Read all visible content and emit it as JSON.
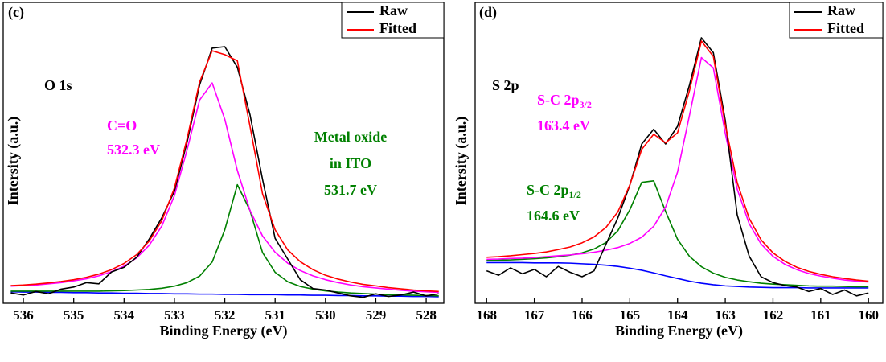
{
  "chart_data": [
    {
      "type": "line",
      "panel_label": "(c)",
      "x_label": "Binding Energy (eV)",
      "y_label": "Intersity (a.u.)",
      "x": [
        536.25,
        536.0,
        535.75,
        535.5,
        535.25,
        535.0,
        534.75,
        534.5,
        534.25,
        534.0,
        533.75,
        533.5,
        533.25,
        533.0,
        532.75,
        532.5,
        532.25,
        532.0,
        531.75,
        531.5,
        531.25,
        531.0,
        530.75,
        530.5,
        530.25,
        530.0,
        529.75,
        529.5,
        529.25,
        529.0,
        528.75,
        528.5,
        528.25,
        528.0,
        527.75
      ],
      "xlim": [
        536.4,
        527.65
      ],
      "xticks": [
        536,
        535,
        534,
        533,
        532,
        531,
        530,
        529,
        528
      ],
      "ylim": [
        -2,
        100
      ],
      "legend": "upper right",
      "series": [
        {
          "name": "Raw",
          "color": "#000000",
          "values": [
            1.5,
            0.8,
            2.0,
            1.2,
            2.8,
            3.5,
            5.0,
            4.6,
            8.6,
            10.2,
            13.6,
            19.8,
            27.0,
            36.0,
            52.5,
            72.0,
            84.5,
            85.0,
            78.0,
            62.0,
            40.0,
            20.0,
            13.0,
            6.0,
            3.0,
            2.5,
            1.5,
            0.5,
            0.0,
            1.2,
            0.3,
            0.8,
            1.8,
            0.5,
            1.2
          ]
        },
        {
          "name": "Fitted",
          "color": "#ff0000",
          "values": [
            4.0,
            4.2,
            4.5,
            4.9,
            5.4,
            6.0,
            6.8,
            7.9,
            9.4,
            11.5,
            14.5,
            19.1,
            26.0,
            37.1,
            53.7,
            73.0,
            83.6,
            82.3,
            80.2,
            58.1,
            35.1,
            22.9,
            16.1,
            12.1,
            9.4,
            7.5,
            6.2,
            5.2,
            4.4,
            3.9,
            3.3,
            2.9,
            2.5,
            2.2,
            2.0
          ]
        },
        {
          "color": "#ff00ff",
          "values": [
            3.8,
            4.0,
            4.2,
            4.6,
            5.0,
            5.6,
            6.3,
            7.3,
            8.7,
            10.6,
            13.4,
            17.7,
            24.2,
            34.5,
            49.9,
            66.9,
            72.7,
            60.4,
            43.0,
            29.5,
            20.8,
            15.3,
            11.6,
            9.1,
            7.3,
            6.0,
            5.0,
            4.2,
            3.6,
            3.2,
            2.8,
            2.4,
            2.1,
            1.9,
            1.7
          ]
        },
        {
          "color": "#008000",
          "values": [
            2.1,
            2.1,
            2.1,
            2.1,
            2.1,
            2.1,
            2.1,
            2.1,
            2.2,
            2.3,
            2.5,
            2.7,
            3.1,
            3.8,
            5.0,
            7.2,
            12.0,
            22.9,
            38.2,
            29.5,
            15.2,
            8.5,
            5.3,
            3.7,
            2.8,
            2.2,
            1.8,
            1.5,
            1.3,
            1.1,
            0.9,
            0.8,
            0.7,
            0.6,
            0.5
          ]
        },
        {
          "color": "#0000ff",
          "values": [
            1.9,
            1.8,
            1.8,
            1.7,
            1.7,
            1.6,
            1.6,
            1.5,
            1.5,
            1.4,
            1.4,
            1.3,
            1.3,
            1.2,
            1.2,
            1.1,
            1.1,
            1.0,
            1.0,
            0.9,
            0.9,
            0.9,
            0.8,
            0.8,
            0.7,
            0.7,
            0.6,
            0.6,
            0.5,
            0.5,
            0.4,
            0.4,
            0.3,
            0.3,
            0.2
          ]
        }
      ],
      "annotations": [
        {
          "text": "O 1s",
          "color": "#000000"
        },
        {
          "text": "C=O",
          "color": "#ff00ff"
        },
        {
          "text": "532.3 eV",
          "color": "#ff00ff"
        },
        {
          "text": "Metal oxide",
          "color": "#008000"
        },
        {
          "text": "in ITO",
          "color": "#008000"
        },
        {
          "text": "531.7 eV",
          "color": "#008000"
        }
      ]
    },
    {
      "type": "line",
      "panel_label": "(d)",
      "x_label": "Binding Energy (eV)",
      "y_label": "Intersity (a.u.)",
      "x": [
        168.0,
        167.75,
        167.5,
        167.25,
        167.0,
        166.75,
        166.5,
        166.25,
        166.0,
        165.75,
        165.5,
        165.25,
        165.0,
        164.75,
        164.5,
        164.25,
        164.0,
        163.75,
        163.5,
        163.25,
        163.0,
        162.75,
        162.5,
        162.25,
        162.0,
        161.75,
        161.5,
        161.25,
        161.0,
        160.75,
        160.5,
        160.25,
        160.0
      ],
      "xlim": [
        168.24,
        159.7
      ],
      "xticks": [
        168,
        167,
        166,
        165,
        164,
        163,
        162,
        161,
        160
      ],
      "ylim": [
        -2,
        100
      ],
      "legend": "upper right",
      "series": [
        {
          "name": "Raw",
          "color": "#000000",
          "values": [
            9.0,
            7.5,
            10.0,
            8.0,
            9.5,
            7.0,
            10.5,
            8.5,
            7.0,
            9.0,
            18.0,
            27.0,
            38.0,
            52.0,
            57.0,
            52.0,
            58.0,
            72.0,
            88.0,
            83.0,
            60.0,
            28.0,
            14.0,
            7.0,
            5.0,
            4.0,
            3.5,
            2.0,
            3.0,
            1.0,
            2.5,
            0.5,
            1.5
          ]
        },
        {
          "name": "Fitted",
          "color": "#ff0000",
          "values": [
            13.6,
            13.8,
            14.1,
            14.5,
            14.9,
            15.4,
            16.2,
            17.1,
            18.5,
            20.5,
            23.7,
            29.0,
            38.1,
            50.2,
            55.3,
            52.4,
            55.8,
            70.1,
            86.9,
            81.7,
            58.5,
            38.9,
            26.8,
            19.5,
            15.1,
            12.2,
            10.2,
            8.8,
            7.8,
            7.0,
            6.4,
            5.9,
            5.5
          ]
        },
        {
          "color": "#ff00ff",
          "values": [
            12.9,
            13.0,
            13.2,
            13.3,
            13.5,
            13.8,
            14.1,
            14.4,
            14.8,
            15.3,
            16.0,
            16.9,
            18.3,
            20.4,
            24.1,
            30.6,
            42.5,
            61.7,
            81.3,
            77.8,
            55.6,
            36.7,
            25.0,
            18.1,
            13.9,
            11.2,
            9.4,
            8.1,
            7.2,
            6.5,
            5.9,
            5.5,
            5.2
          ]
        },
        {
          "color": "#008000",
          "values": [
            12.5,
            12.6,
            12.7,
            12.9,
            13.1,
            13.4,
            13.8,
            14.3,
            15.1,
            16.4,
            18.6,
            22.6,
            29.7,
            39.0,
            39.5,
            29.1,
            19.7,
            13.9,
            10.4,
            8.2,
            6.8,
            5.9,
            5.3,
            4.8,
            4.5,
            4.3,
            4.1,
            3.9,
            3.8,
            3.8,
            3.7,
            3.6,
            3.6
          ]
        },
        {
          "color": "#0000ff",
          "values": [
            11.8,
            11.8,
            11.8,
            11.8,
            11.7,
            11.7,
            11.7,
            11.6,
            11.4,
            11.2,
            10.9,
            10.5,
            9.9,
            9.2,
            8.3,
            7.3,
            6.4,
            5.5,
            4.8,
            4.3,
            3.9,
            3.7,
            3.5,
            3.4,
            3.3,
            3.3,
            3.3,
            3.2,
            3.2,
            3.2,
            3.2,
            3.2,
            3.2
          ]
        }
      ],
      "annotations": [
        {
          "text": "S 2p",
          "color": "#000000"
        },
        {
          "text": "S-C 2p",
          "subscript": "3/2",
          "color": "#ff00ff"
        },
        {
          "text": "163.4 eV",
          "color": "#ff00ff"
        },
        {
          "text": "S-C 2p",
          "subscript": "1/2",
          "color": "#008000"
        },
        {
          "text": "164.6 eV",
          "color": "#008000"
        }
      ]
    }
  ]
}
